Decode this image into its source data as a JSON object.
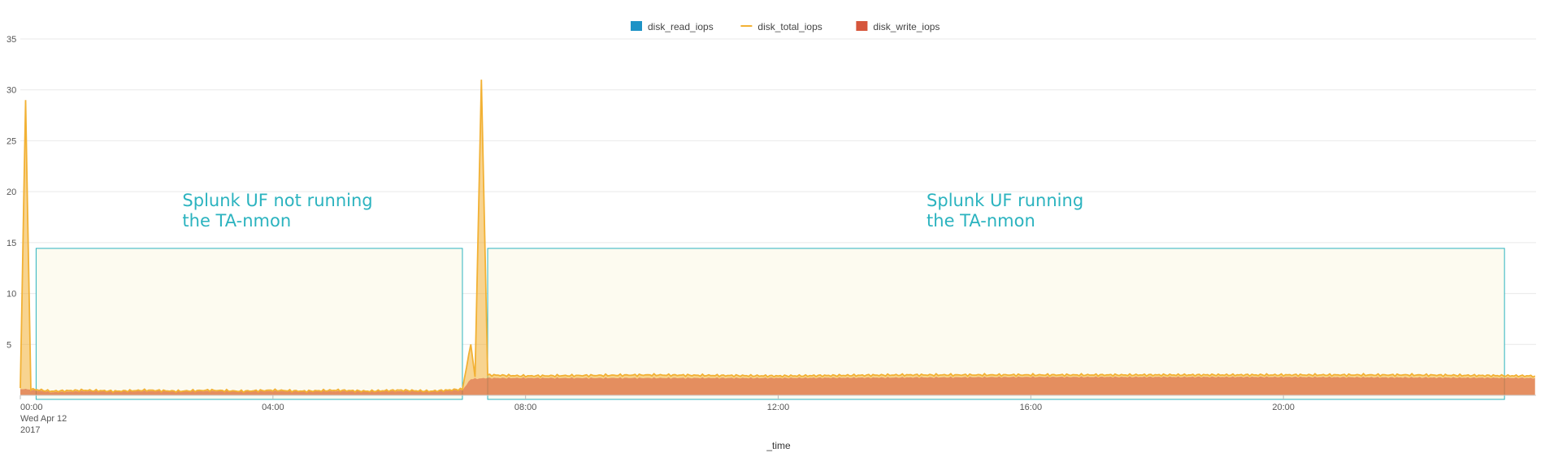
{
  "chart_data": {
    "type": "area",
    "xlabel": "_time",
    "x_range": [
      "2017-04-12 00:00",
      "2017-04-13 00:00"
    ],
    "ylim": [
      0,
      35
    ],
    "yticks": [
      5,
      10,
      15,
      20,
      25,
      30,
      35
    ],
    "xticks": [
      {
        "time": "00:00",
        "label": "00:00",
        "sublabels": [
          "Wed Apr 12",
          "2017"
        ]
      },
      {
        "time": "04:00",
        "label": "04:00"
      },
      {
        "time": "08:00",
        "label": "08:00"
      },
      {
        "time": "12:00",
        "label": "12:00"
      },
      {
        "time": "16:00",
        "label": "16:00"
      },
      {
        "time": "20:00",
        "label": "20:00"
      }
    ],
    "grid": true,
    "legend_position": "top-center",
    "series": [
      {
        "name": "disk_read_iops",
        "kind": "area",
        "color": "#1e93c6",
        "values": []
      },
      {
        "name": "disk_total_iops",
        "kind": "line",
        "color": "#f2b134",
        "points": [
          [
            "00:00",
            0.7
          ],
          [
            "00:05",
            29.0
          ],
          [
            "00:10",
            0.6
          ],
          [
            "00:30",
            0.4
          ],
          [
            "01:00",
            0.5
          ],
          [
            "01:30",
            0.4
          ],
          [
            "02:00",
            0.5
          ],
          [
            "02:30",
            0.4
          ],
          [
            "03:00",
            0.5
          ],
          [
            "03:30",
            0.4
          ],
          [
            "04:00",
            0.5
          ],
          [
            "04:30",
            0.4
          ],
          [
            "05:00",
            0.5
          ],
          [
            "05:30",
            0.4
          ],
          [
            "06:00",
            0.5
          ],
          [
            "06:30",
            0.4
          ],
          [
            "07:00",
            0.6
          ],
          [
            "07:08",
            5.0
          ],
          [
            "07:12",
            1.8
          ],
          [
            "07:18",
            31.0
          ],
          [
            "07:24",
            2.0
          ],
          [
            "08:00",
            1.9
          ],
          [
            "10:00",
            2.0
          ],
          [
            "12:00",
            1.9
          ],
          [
            "14:00",
            2.0
          ],
          [
            "16:00",
            2.0
          ],
          [
            "18:00",
            2.0
          ],
          [
            "20:00",
            2.0
          ],
          [
            "22:00",
            2.0
          ],
          [
            "23:59",
            1.9
          ]
        ]
      },
      {
        "name": "disk_write_iops",
        "kind": "area",
        "color": "#d6563c",
        "points": [
          [
            "00:00",
            0.6
          ],
          [
            "00:05",
            0.6
          ],
          [
            "00:30",
            0.3
          ],
          [
            "01:00",
            0.4
          ],
          [
            "02:00",
            0.4
          ],
          [
            "03:00",
            0.4
          ],
          [
            "04:00",
            0.4
          ],
          [
            "05:00",
            0.4
          ],
          [
            "06:00",
            0.4
          ],
          [
            "07:00",
            0.5
          ],
          [
            "07:08",
            1.6
          ],
          [
            "07:24",
            1.7
          ],
          [
            "08:00",
            1.7
          ],
          [
            "12:00",
            1.7
          ],
          [
            "16:00",
            1.8
          ],
          [
            "20:00",
            1.8
          ],
          [
            "23:59",
            1.7
          ]
        ]
      }
    ],
    "annotations": [
      {
        "lines": [
          "Splunk UF not running",
          "the TA-nmon"
        ],
        "region": [
          "00:15",
          "07:00"
        ]
      },
      {
        "lines": [
          "Splunk UF running",
          "the TA-nmon"
        ],
        "region": [
          "07:24",
          "23:30"
        ]
      }
    ]
  }
}
